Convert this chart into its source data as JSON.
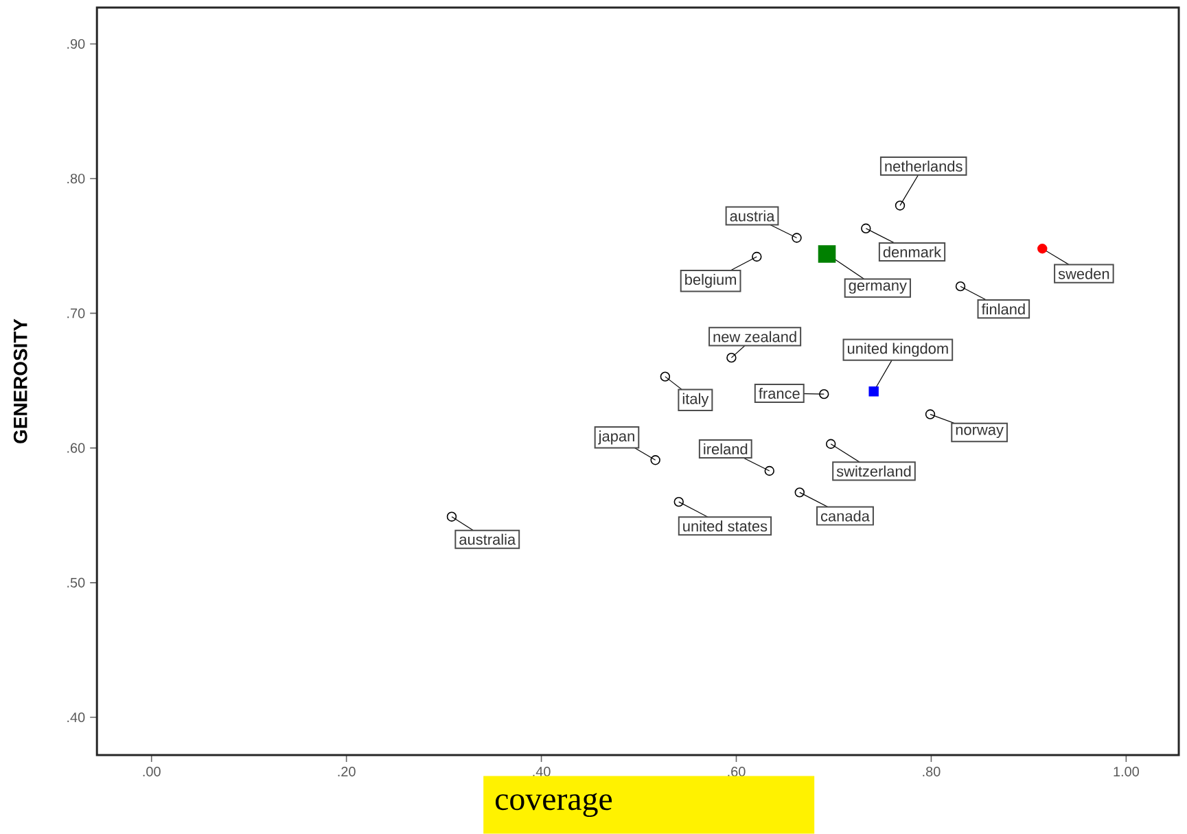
{
  "chart_data": {
    "type": "scatter",
    "xlabel": "coverage",
    "ylabel": "GENEROSITY",
    "xlim": [
      -0.056,
      1.054
    ],
    "ylim": [
      0.372,
      0.927
    ],
    "xticks": [
      {
        "value": 0,
        "label": ".00"
      },
      {
        "value": 0.2,
        "label": ".20"
      },
      {
        "value": 0.4,
        "label": ".40"
      },
      {
        "value": 0.6,
        "label": ".60"
      },
      {
        "value": 0.8,
        "label": ".80"
      },
      {
        "value": 1.0,
        "label": "1.00"
      }
    ],
    "yticks": [
      {
        "value": 0.4,
        "label": ".40"
      },
      {
        "value": 0.5,
        "label": ".50"
      },
      {
        "value": 0.6,
        "label": ".60"
      },
      {
        "value": 0.7,
        "label": ".70"
      },
      {
        "value": 0.8,
        "label": ".80"
      },
      {
        "value": 0.9,
        "label": ".90"
      }
    ],
    "series": [
      {
        "color": "#000000",
        "marker": "circle",
        "x": [
          0.308,
          0.517,
          0.541,
          0.527,
          0.634,
          0.595,
          0.621,
          0.662,
          0.69,
          0.733,
          0.768,
          0.697,
          0.665,
          0.799,
          0.83
        ],
        "values": [
          0.549,
          0.591,
          0.56,
          0.653,
          0.583,
          0.667,
          0.742,
          0.756,
          0.64,
          0.763,
          0.78,
          0.603,
          0.567,
          0.625,
          0.72
        ]
      },
      {
        "color": "#008000",
        "marker": "square",
        "x": [
          0.693
        ],
        "values": [
          0.744
        ]
      },
      {
        "color": "#0000ff",
        "marker": "square",
        "x": [
          0.741
        ],
        "values": [
          0.642
        ]
      },
      {
        "color": "#ff0000",
        "marker": "circle",
        "x": [
          0.914
        ],
        "values": [
          0.748
        ]
      }
    ],
    "annotations": [
      {
        "text": "australia",
        "x": 0.308,
        "y": 0.549
      },
      {
        "text": "japan",
        "x": 0.517,
        "y": 0.591
      },
      {
        "text": "united states",
        "x": 0.541,
        "y": 0.56
      },
      {
        "text": "italy",
        "x": 0.527,
        "y": 0.653
      },
      {
        "text": "ireland",
        "x": 0.634,
        "y": 0.583
      },
      {
        "text": "new  zealand",
        "x": 0.595,
        "y": 0.667
      },
      {
        "text": "belgium",
        "x": 0.621,
        "y": 0.742
      },
      {
        "text": "austria",
        "x": 0.662,
        "y": 0.756
      },
      {
        "text": "germany",
        "x": 0.693,
        "y": 0.744
      },
      {
        "text": "france",
        "x": 0.69,
        "y": 0.64
      },
      {
        "text": "united kingdom",
        "x": 0.741,
        "y": 0.642
      },
      {
        "text": "denmark",
        "x": 0.733,
        "y": 0.763
      },
      {
        "text": "netherlands",
        "x": 0.768,
        "y": 0.78
      },
      {
        "text": "switzerland",
        "x": 0.697,
        "y": 0.603
      },
      {
        "text": "canada",
        "x": 0.665,
        "y": 0.567
      },
      {
        "text": "norway",
        "x": 0.799,
        "y": 0.625
      },
      {
        "text": "finland",
        "x": 0.83,
        "y": 0.72
      },
      {
        "text": "sweden",
        "x": 0.914,
        "y": 0.748
      }
    ]
  }
}
